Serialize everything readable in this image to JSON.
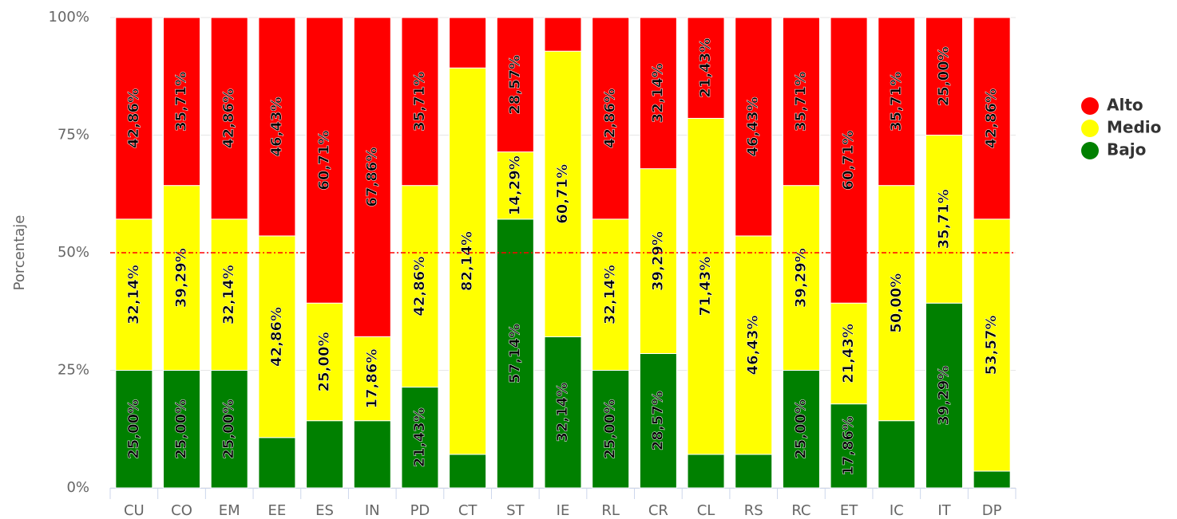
{
  "chart_data": {
    "type": "stacked_bar",
    "y_label": "Porcentaje",
    "categories": [
      "CU",
      "CO",
      "EM",
      "EE",
      "ES",
      "IN",
      "PD",
      "CT",
      "ST",
      "IE",
      "RL",
      "CR",
      "CL",
      "RS",
      "RC",
      "ET",
      "IC",
      "IT",
      "DP"
    ],
    "series": [
      {
        "name": "Bajo",
        "color": "#008000",
        "values": [
          25.0,
          25.0,
          25.0,
          10.71,
          14.29,
          14.29,
          21.43,
          7.14,
          57.14,
          32.14,
          25.0,
          28.57,
          7.14,
          7.14,
          25.0,
          17.86,
          14.29,
          39.29,
          3.57
        ],
        "value_labels": [
          "25,00%",
          "25,00%",
          "25,00%",
          null,
          null,
          null,
          "21,43%",
          null,
          "57,14%",
          "32,14%",
          "25,00%",
          "28,57%",
          null,
          null,
          "25,00%",
          "17,86%",
          null,
          "39,29%",
          null
        ]
      },
      {
        "name": "Medio",
        "color": "#ffff00",
        "values": [
          32.14,
          39.29,
          32.14,
          42.86,
          25.0,
          17.86,
          42.86,
          82.14,
          14.29,
          60.71,
          32.14,
          39.29,
          71.43,
          46.43,
          39.29,
          21.43,
          50.0,
          35.71,
          53.57
        ],
        "value_labels": [
          "32,14%",
          "39,29%",
          "32,14%",
          "42,86%",
          "25,00%",
          "17,86%",
          "42,86%",
          "82,14%",
          "14,29%",
          "60,71%",
          "32,14%",
          "39,29%",
          "71,43%",
          "46,43%",
          "39,29%",
          "21,43%",
          "50,00%",
          "35,71%",
          "53,57%"
        ]
      },
      {
        "name": "Alto",
        "color": "#ff0000",
        "values": [
          42.86,
          35.71,
          42.86,
          46.43,
          60.71,
          67.86,
          35.71,
          10.71,
          28.57,
          7.14,
          42.86,
          32.14,
          21.43,
          46.43,
          35.71,
          60.71,
          35.71,
          25.0,
          42.86
        ],
        "value_labels": [
          "42,86%",
          "35,71%",
          "42,86%",
          "46,43%",
          "60,71%",
          "67,86%",
          "35,71%",
          null,
          "28,57%",
          null,
          "42,86%",
          "32,14%",
          "21,43%",
          "46,43%",
          "35,71%",
          "60,71%",
          "35,71%",
          "25,00%",
          "42,86%"
        ]
      }
    ],
    "ylim": [
      0,
      100
    ],
    "yticks": [
      {
        "value": 0,
        "label": "0%"
      },
      {
        "value": 25,
        "label": "25%"
      },
      {
        "value": 50,
        "label": "50%"
      },
      {
        "value": 75,
        "label": "75%"
      },
      {
        "value": 100,
        "label": "100%"
      }
    ],
    "grid": true,
    "reference_line": {
      "value": 50,
      "color": "#ff0000"
    },
    "legend": "right"
  }
}
